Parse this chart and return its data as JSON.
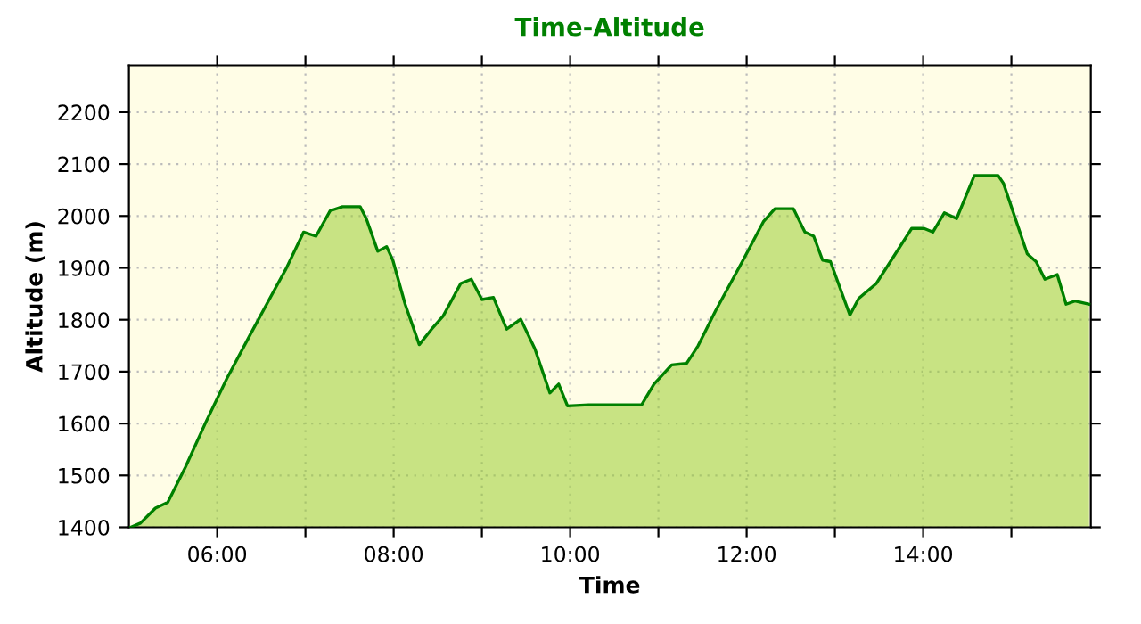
{
  "chart_data": {
    "type": "area",
    "title": "Time-Altitude",
    "xlabel": "Time",
    "ylabel": "Altitude (m)",
    "xlim": [
      5.0,
      15.9
    ],
    "ylim": [
      1400,
      2290
    ],
    "xticks": [
      {
        "value": 6,
        "label": "06:00"
      },
      {
        "value": 7,
        "label": null
      },
      {
        "value": 8,
        "label": "08:00"
      },
      {
        "value": 9,
        "label": null
      },
      {
        "value": 10,
        "label": "10:00"
      },
      {
        "value": 11,
        "label": null
      },
      {
        "value": 12,
        "label": "12:00"
      },
      {
        "value": 13,
        "label": null
      },
      {
        "value": 14,
        "label": "14:00"
      },
      {
        "value": 15,
        "label": null
      }
    ],
    "yticks": [
      1400,
      1500,
      1600,
      1700,
      1800,
      1900,
      2000,
      2100,
      2200
    ],
    "grid": true,
    "legend": false,
    "line_style": "solid",
    "marker": "none",
    "series": [
      {
        "color": "#008000",
        "x": [
          5.02,
          5.13,
          5.3,
          5.44,
          5.64,
          5.87,
          6.11,
          6.38,
          6.65,
          6.78,
          6.98,
          7.12,
          7.28,
          7.42,
          7.62,
          7.69,
          7.82,
          7.92,
          7.99,
          8.13,
          8.29,
          8.43,
          8.56,
          8.76,
          8.88,
          9.0,
          9.13,
          9.28,
          9.44,
          9.6,
          9.77,
          9.87,
          9.97,
          10.21,
          10.41,
          10.81,
          10.95,
          11.15,
          11.32,
          11.45,
          11.65,
          11.96,
          12.19,
          12.32,
          12.53,
          12.66,
          12.76,
          12.86,
          12.95,
          13.17,
          13.27,
          13.47,
          13.64,
          13.87,
          14.01,
          14.11,
          14.24,
          14.38,
          14.58,
          14.85,
          14.91,
          15.18,
          15.28,
          15.38,
          15.52,
          15.62,
          15.72,
          15.88
        ],
        "values": [
          1400,
          1408,
          1437,
          1448,
          1516,
          1602,
          1687,
          1773,
          1858,
          1898,
          1969,
          1961,
          2010,
          2018,
          2018,
          1995,
          1932,
          1941,
          1915,
          1830,
          1752,
          1782,
          1807,
          1870,
          1878,
          1839,
          1843,
          1782,
          1801,
          1744,
          1659,
          1676,
          1634,
          1636,
          1636,
          1636,
          1676,
          1713,
          1716,
          1750,
          1818,
          1915,
          1989,
          2014,
          2014,
          1969,
          1961,
          1915,
          1912,
          1809,
          1841,
          1870,
          1915,
          1976,
          1976,
          1969,
          2006,
          1995,
          2078,
          2078,
          2063,
          1927,
          1912,
          1878,
          1887,
          1830,
          1836,
          1830
        ]
      }
    ]
  }
}
